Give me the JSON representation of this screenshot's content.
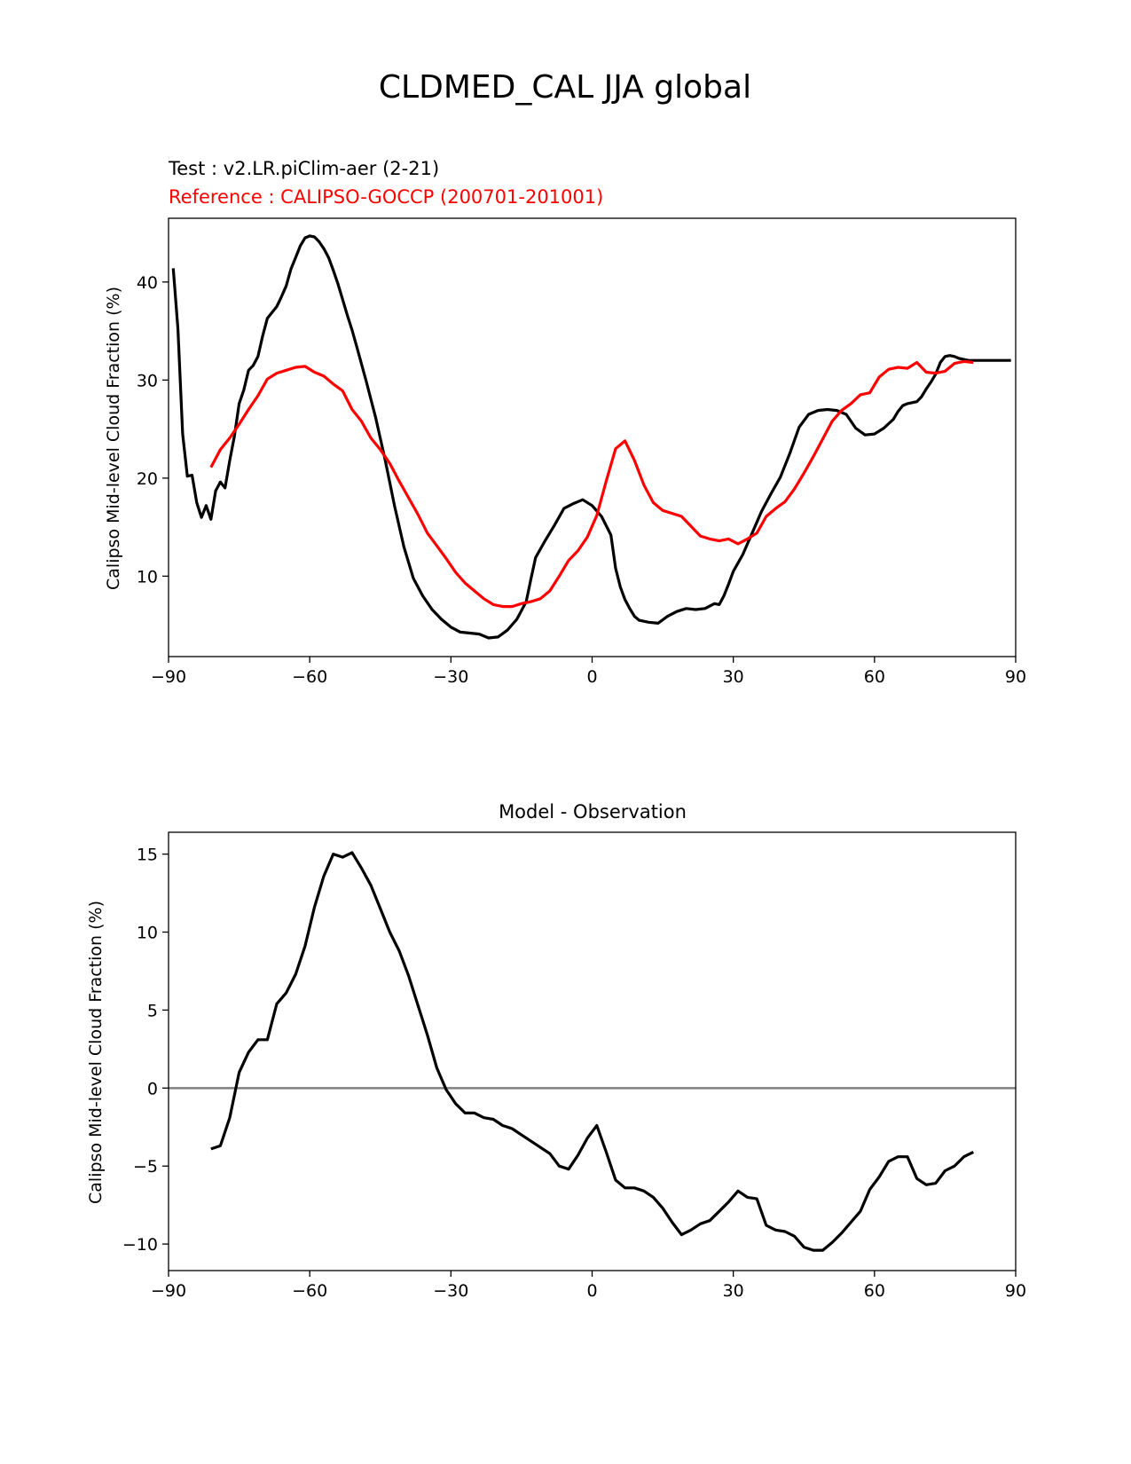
{
  "figure": {
    "suptitle": "CLDMED_CAL JJA global"
  },
  "chart_data": [
    {
      "type": "line",
      "test_label": "Test : v2.LR.piClim-aer (2-21)",
      "reference_label": "Reference : CALIPSO-GOCCP (200701-201001)",
      "title": "",
      "xlabel": "",
      "ylabel": "Calipso Mid-level Cloud Fraction (%)",
      "xlim": [
        -90,
        90
      ],
      "ylim": [
        1.8,
        46.5
      ],
      "xticks": [
        -90,
        -60,
        -30,
        0,
        30,
        60,
        90
      ],
      "yticks": [
        10,
        20,
        30,
        40
      ],
      "grid": false,
      "series": [
        {
          "role": "test",
          "color": "#000000",
          "x": [
            -89,
            -88,
            -87,
            -86,
            -85,
            -84,
            -83,
            -82,
            -81,
            -80,
            -79,
            -78,
            -77,
            -76,
            -75,
            -74,
            -73,
            -72,
            -71,
            -70,
            -69,
            -68,
            -67,
            -66,
            -65,
            -64,
            -63,
            -62,
            -61,
            -60,
            -59,
            -58,
            -57,
            -56,
            -55,
            -54,
            -53,
            -52,
            -51,
            -50,
            -48,
            -46,
            -44,
            -42,
            -40,
            -38,
            -36,
            -34,
            -32,
            -30,
            -28,
            -26,
            -24,
            -22,
            -20,
            -18,
            -16,
            -14,
            -13,
            -12,
            -10,
            -8,
            -6,
            -4,
            -2,
            0,
            2,
            4,
            5,
            6,
            7,
            8,
            9,
            10,
            12,
            14,
            16,
            18,
            20,
            22,
            24,
            26,
            27,
            28,
            29,
            30,
            32,
            34,
            36,
            38,
            40,
            42,
            44,
            46,
            48,
            50,
            52,
            54,
            56,
            58,
            60,
            62,
            64,
            65,
            66,
            67,
            68,
            69,
            70,
            71,
            72,
            73,
            74,
            75,
            76,
            77,
            78,
            79,
            80,
            81,
            82,
            83,
            84,
            85,
            86,
            87,
            88,
            89
          ],
          "y": [
            41.4,
            35.2,
            24.5,
            20.2,
            20.3,
            17.5,
            16.0,
            17.2,
            15.8,
            18.7,
            19.6,
            19.0,
            21.8,
            24.3,
            27.6,
            29.0,
            31.0,
            31.5,
            32.4,
            34.5,
            36.3,
            36.9,
            37.5,
            38.5,
            39.6,
            41.3,
            42.5,
            43.7,
            44.5,
            44.7,
            44.6,
            44.1,
            43.4,
            42.5,
            41.2,
            39.8,
            38.2,
            36.6,
            35.1,
            33.4,
            29.9,
            26.2,
            21.9,
            17.2,
            13.0,
            9.8,
            8.0,
            6.6,
            5.6,
            4.8,
            4.3,
            4.2,
            4.1,
            3.7,
            3.8,
            4.5,
            5.6,
            7.4,
            9.7,
            11.9,
            13.6,
            15.2,
            16.9,
            17.4,
            17.8,
            17.2,
            16.1,
            14.2,
            10.8,
            8.9,
            7.6,
            6.7,
            5.9,
            5.5,
            5.3,
            5.2,
            5.9,
            6.4,
            6.7,
            6.6,
            6.7,
            7.2,
            7.1,
            8.0,
            9.2,
            10.5,
            12.2,
            14.4,
            16.6,
            18.4,
            20.1,
            22.5,
            25.2,
            26.5,
            26.9,
            27.0,
            26.9,
            26.5,
            25.1,
            24.4,
            24.5,
            25.1,
            26.0,
            26.8,
            27.4,
            27.6,
            27.7,
            27.8,
            28.3,
            29.1,
            29.8,
            30.6,
            31.8,
            32.4,
            32.5,
            32.4,
            32.2,
            32.1,
            32.0,
            32.0,
            32.0,
            32.0,
            32.0,
            32.0,
            32.0,
            32.0,
            32.0,
            32.0
          ]
        },
        {
          "role": "reference",
          "color": "#ff0000",
          "x": [
            -81,
            -79,
            -77,
            -75,
            -73,
            -71,
            -69,
            -67,
            -65,
            -63,
            -61,
            -59,
            -57,
            -55,
            -53,
            -51,
            -49,
            -47,
            -45,
            -43,
            -41,
            -39,
            -37,
            -35,
            -33,
            -31,
            -29,
            -27,
            -25,
            -23,
            -21,
            -19,
            -17,
            -15,
            -13,
            -11,
            -9,
            -7,
            -5,
            -3,
            -1,
            1,
            3,
            5,
            7,
            9,
            11,
            13,
            15,
            17,
            19,
            21,
            23,
            25,
            27,
            29,
            31,
            33,
            35,
            37,
            39,
            41,
            43,
            45,
            47,
            49,
            51,
            53,
            55,
            57,
            59,
            61,
            63,
            65,
            67,
            69,
            71,
            73,
            75,
            77,
            79,
            81
          ],
          "y": [
            21.1,
            22.9,
            24.1,
            25.5,
            27.0,
            28.4,
            30.1,
            30.7,
            31.0,
            31.3,
            31.4,
            30.8,
            30.4,
            29.6,
            28.9,
            27.0,
            25.8,
            24.1,
            22.9,
            21.5,
            19.7,
            18.0,
            16.3,
            14.4,
            13.1,
            11.8,
            10.4,
            9.3,
            8.5,
            7.7,
            7.1,
            6.9,
            6.9,
            7.2,
            7.4,
            7.7,
            8.5,
            10.0,
            11.6,
            12.6,
            14.0,
            16.2,
            19.7,
            23.0,
            23.8,
            21.8,
            19.3,
            17.5,
            16.7,
            16.4,
            16.1,
            15.1,
            14.1,
            13.8,
            13.6,
            13.8,
            13.3,
            13.8,
            14.4,
            16.1,
            16.9,
            17.6,
            18.9,
            20.5,
            22.2,
            24.0,
            25.8,
            26.9,
            27.6,
            28.5,
            28.7,
            30.3,
            31.1,
            31.3,
            31.2,
            31.8,
            30.8,
            30.7,
            30.9,
            31.7,
            31.9,
            31.8
          ]
        }
      ]
    },
    {
      "type": "line",
      "title": "Model - Observation",
      "xlabel": "",
      "ylabel": "Calipso Mid-level Cloud Fraction (%)",
      "xlim": [
        -90,
        90
      ],
      "ylim": [
        -11.7,
        16.4
      ],
      "xticks": [
        -90,
        -60,
        -30,
        0,
        30,
        60,
        90
      ],
      "yticks": [
        -10,
        -5,
        0,
        5,
        10,
        15
      ],
      "grid": false,
      "zero_line_color": "#808080",
      "series": [
        {
          "role": "difference",
          "color": "#000000",
          "x": [
            -81,
            -79,
            -77,
            -75,
            -73,
            -71,
            -69,
            -67,
            -65,
            -63,
            -61,
            -59,
            -57,
            -55,
            -53,
            -51,
            -49,
            -47,
            -45,
            -43,
            -41,
            -39,
            -37,
            -35,
            -33,
            -31,
            -29,
            -27,
            -25,
            -23,
            -21,
            -19,
            -17,
            -15,
            -13,
            -11,
            -9,
            -7,
            -5,
            -3,
            -1,
            1,
            3,
            5,
            7,
            9,
            11,
            13,
            15,
            17,
            19,
            21,
            23,
            25,
            27,
            29,
            31,
            33,
            35,
            37,
            39,
            41,
            43,
            45,
            47,
            49,
            51,
            53,
            55,
            57,
            59,
            61,
            63,
            65,
            67,
            69,
            71,
            73,
            75,
            77,
            79,
            81
          ],
          "y": [
            -3.9,
            -3.7,
            -1.9,
            1.0,
            2.3,
            3.1,
            3.1,
            5.4,
            6.1,
            7.3,
            9.1,
            11.6,
            13.6,
            15.0,
            14.8,
            15.1,
            14.1,
            13.0,
            11.5,
            10.0,
            8.8,
            7.2,
            5.3,
            3.4,
            1.3,
            -0.1,
            -1.0,
            -1.6,
            -1.6,
            -1.9,
            -2.0,
            -2.4,
            -2.6,
            -3.0,
            -3.4,
            -3.8,
            -4.2,
            -5.0,
            -5.2,
            -4.3,
            -3.2,
            -2.4,
            -4.1,
            -5.9,
            -6.4,
            -6.4,
            -6.6,
            -7.0,
            -7.7,
            -8.6,
            -9.4,
            -9.1,
            -8.7,
            -8.5,
            -7.9,
            -7.3,
            -6.6,
            -7.0,
            -7.1,
            -8.8,
            -9.1,
            -9.2,
            -9.5,
            -10.2,
            -10.4,
            -10.4,
            -9.9,
            -9.3,
            -8.6,
            -7.9,
            -6.5,
            -5.7,
            -4.7,
            -4.4,
            -4.4,
            -5.8,
            -6.2,
            -6.1,
            -5.3,
            -5.0,
            -4.4,
            -4.1
          ]
        }
      ]
    }
  ]
}
